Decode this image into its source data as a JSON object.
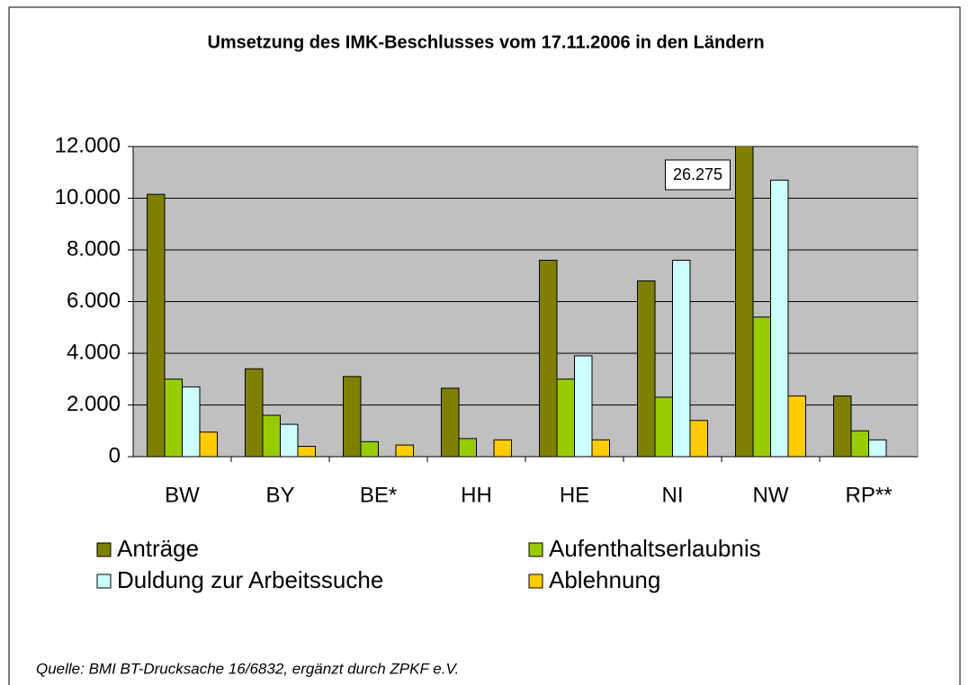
{
  "chart_data": {
    "type": "bar",
    "title": "Umsetzung des IMK-Beschlusses vom 17.11.2006 in den Ländern",
    "categories": [
      "BW",
      "BY",
      "BE*",
      "HH",
      "HE",
      "NI",
      "NW",
      "RP**"
    ],
    "series": [
      {
        "name": "Anträge",
        "color": "#808000",
        "values": [
          10150,
          3400,
          3100,
          2650,
          7600,
          6800,
          26275,
          2350
        ],
        "value_labels": [
          null,
          null,
          null,
          null,
          null,
          null,
          "26.275",
          null
        ]
      },
      {
        "name": "Aufenthaltserlaubnis",
        "color": "#99cc00",
        "values": [
          3000,
          1600,
          580,
          700,
          3000,
          2300,
          5400,
          1000
        ]
      },
      {
        "name": "Duldung zur Arbeitssuche",
        "color": "#ccffff",
        "values": [
          2700,
          1250,
          null,
          null,
          3900,
          7600,
          10700,
          650
        ]
      },
      {
        "name": "Ablehnung",
        "color": "#ffcc00",
        "values": [
          950,
          400,
          450,
          650,
          650,
          1400,
          2350,
          null
        ]
      }
    ],
    "ylim": [
      0,
      12000
    ],
    "yticks": [
      0,
      {
        "value": 2000,
        "label": "2.000"
      },
      {
        "value": 4000,
        "label": "4.000"
      },
      {
        "value": 6000,
        "label": "6.000"
      },
      {
        "value": 8000,
        "label": "8.000"
      },
      {
        "value": 10000,
        "label": "10.000"
      },
      {
        "value": 12000,
        "label": "12.000"
      }
    ],
    "grid": true,
    "plot_background": "#c0c0c0",
    "source": "Quelle: BMI BT-Drucksache 16/6832, ergänzt durch ZPKF e.V."
  }
}
